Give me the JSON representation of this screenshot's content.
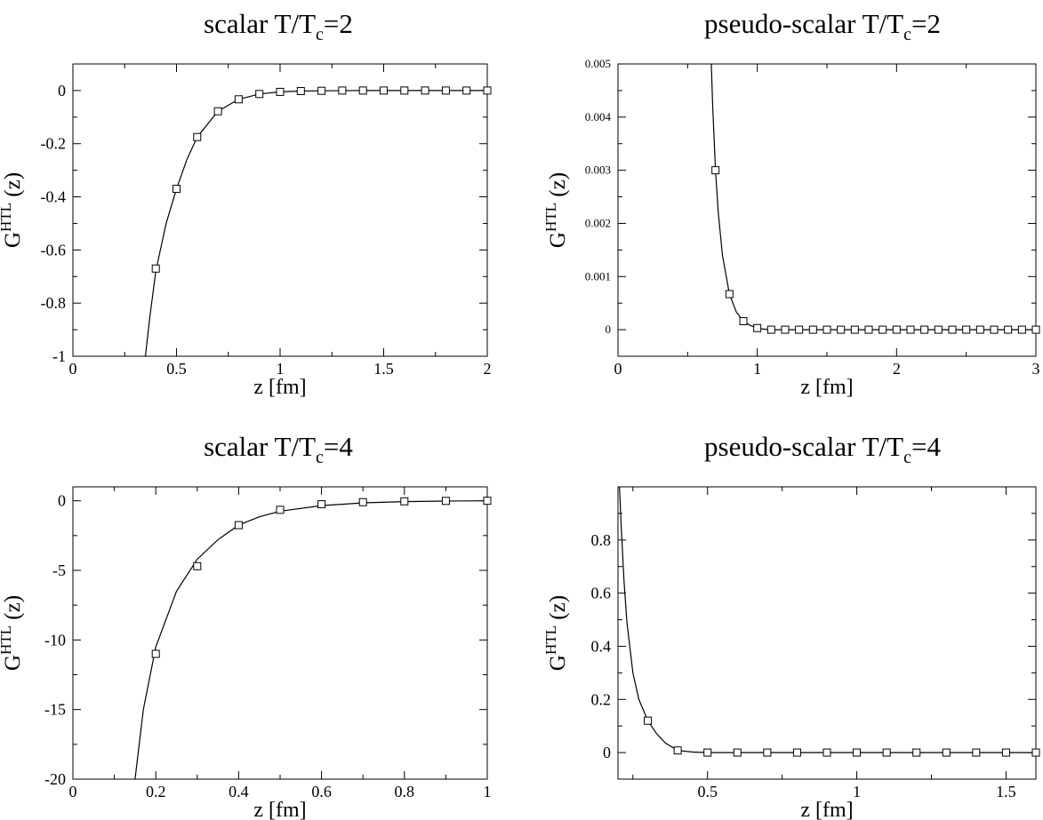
{
  "chart_data": [
    {
      "id": "scalar-T2",
      "type": "line",
      "title": "scalar T/T",
      "title_sub": "c",
      "title_tail": "=2",
      "xlabel": "z [fm]",
      "ylabel_main": "G",
      "ylabel_sup": "HTL",
      "ylabel_tail": " (z)",
      "xlim": [
        0,
        2
      ],
      "ylim": [
        -1,
        0.1
      ],
      "x_ticks": [
        "0",
        "0.5",
        "1",
        "1.5",
        "2"
      ],
      "x_tick_values": [
        0,
        0.5,
        1,
        1.5,
        2
      ],
      "y_ticks": [
        "-1",
        "-0.8",
        "-0.6",
        "-0.4",
        "-0.2",
        "0"
      ],
      "y_tick_values": [
        -1,
        -0.8,
        -0.6,
        -0.4,
        -0.2,
        0
      ],
      "series": [
        {
          "kind": "curve",
          "x": [
            0.35,
            0.37,
            0.4,
            0.45,
            0.5,
            0.55,
            0.6,
            0.7,
            0.8,
            0.9,
            1.0,
            1.1,
            1.2,
            1.4,
            1.6,
            1.8,
            2.0
          ],
          "y": [
            -1.0,
            -0.86,
            -0.68,
            -0.5,
            -0.37,
            -0.26,
            -0.175,
            -0.078,
            -0.033,
            -0.013,
            -0.005,
            -0.002,
            -0.001,
            0,
            0,
            0,
            0
          ]
        },
        {
          "kind": "markers",
          "x": [
            0.4,
            0.5,
            0.6,
            0.7,
            0.8,
            0.9,
            1.0,
            1.1,
            1.2,
            1.3,
            1.4,
            1.5,
            1.6,
            1.7,
            1.8,
            1.9,
            2.0
          ],
          "y": [
            -0.67,
            -0.37,
            -0.175,
            -0.078,
            -0.033,
            -0.013,
            -0.005,
            -0.002,
            -0.001,
            0,
            0,
            0,
            0,
            0,
            0,
            0,
            0
          ]
        }
      ]
    },
    {
      "id": "pseudo-scalar-T2",
      "type": "line",
      "title": "pseudo-scalar T/T",
      "title_sub": "c",
      "title_tail": "=2",
      "xlabel": "z [fm]",
      "ylabel_main": "G",
      "ylabel_sup": "HTL",
      "ylabel_tail": " (z)",
      "xlim": [
        0,
        3
      ],
      "ylim": [
        -0.0005,
        0.005
      ],
      "x_ticks": [
        "0",
        "1",
        "2",
        "3"
      ],
      "x_tick_values": [
        0,
        1,
        2,
        3
      ],
      "y_ticks": [
        "0",
        "0.001",
        "0.002",
        "0.003",
        "0.004",
        "0.005"
      ],
      "y_tick_values": [
        0,
        0.001,
        0.002,
        0.003,
        0.004,
        0.005
      ],
      "series": [
        {
          "kind": "curve",
          "x": [
            0.67,
            0.68,
            0.7,
            0.72,
            0.75,
            0.8,
            0.85,
            0.9,
            0.95,
            1.0,
            1.05,
            1.1,
            1.2,
            1.5,
            2.0,
            3.0
          ],
          "y": [
            0.005,
            0.0042,
            0.003,
            0.0022,
            0.0014,
            0.00067,
            0.00033,
            0.00016,
            8e-05,
            3e-05,
            1e-05,
            0,
            0,
            0,
            0,
            0
          ]
        },
        {
          "kind": "markers",
          "x": [
            0.7,
            0.8,
            0.9,
            1.0,
            1.1,
            1.2,
            1.3,
            1.4,
            1.5,
            1.6,
            1.7,
            1.8,
            1.9,
            2.0,
            2.1,
            2.2,
            2.3,
            2.4,
            2.5,
            2.6,
            2.7,
            2.8,
            2.9,
            3.0
          ],
          "y": [
            0.003,
            0.00067,
            0.00016,
            3e-05,
            0,
            0,
            0,
            0,
            0,
            0,
            0,
            0,
            0,
            0,
            0,
            0,
            0,
            0,
            0,
            0,
            0,
            0,
            0,
            0
          ]
        }
      ]
    },
    {
      "id": "scalar-T4",
      "type": "line",
      "title": "scalar T/T",
      "title_sub": "c",
      "title_tail": "=4",
      "xlabel": "z [fm]",
      "ylabel_main": "G",
      "ylabel_sup": "HTL",
      "ylabel_tail": " (z)",
      "xlim": [
        0,
        1
      ],
      "ylim": [
        -20,
        1
      ],
      "x_ticks": [
        "0",
        "0.2",
        "0.4",
        "0.6",
        "0.8",
        "1"
      ],
      "x_tick_values": [
        0,
        0.2,
        0.4,
        0.6,
        0.8,
        1
      ],
      "y_ticks": [
        "-20",
        "-15",
        "-10",
        "-5",
        "0"
      ],
      "y_tick_values": [
        -20,
        -15,
        -10,
        -5,
        0
      ],
      "series": [
        {
          "kind": "curve",
          "x": [
            0.15,
            0.17,
            0.2,
            0.25,
            0.3,
            0.35,
            0.4,
            0.45,
            0.5,
            0.6,
            0.7,
            0.8,
            0.9,
            1.0
          ],
          "y": [
            -20,
            -15,
            -10.5,
            -6.5,
            -4.2,
            -2.8,
            -1.75,
            -1.15,
            -0.75,
            -0.35,
            -0.15,
            -0.06,
            -0.02,
            0
          ]
        },
        {
          "kind": "markers",
          "x": [
            0.2,
            0.3,
            0.4,
            0.5,
            0.6,
            0.7,
            0.8,
            0.9,
            1.0
          ],
          "y": [
            -11,
            -4.7,
            -1.75,
            -0.65,
            -0.25,
            -0.1,
            -0.04,
            -0.01,
            0
          ]
        }
      ]
    },
    {
      "id": "pseudo-scalar-T4",
      "type": "line",
      "title": "pseudo-scalar T/T",
      "title_sub": "c",
      "title_tail": "=4",
      "xlabel": "z [fm]",
      "ylabel_main": "G",
      "ylabel_sup": "HTL",
      "ylabel_tail": " (z)",
      "xlim": [
        0.2,
        1.6
      ],
      "ylim": [
        -0.1,
        1.0
      ],
      "x_ticks": [
        "0.5",
        "1",
        "1.5"
      ],
      "x_tick_values": [
        0.5,
        1,
        1.5
      ],
      "y_ticks": [
        "0",
        "0.2",
        "0.4",
        "0.6",
        "0.8"
      ],
      "y_tick_values": [
        0,
        0.2,
        0.4,
        0.6,
        0.8
      ],
      "series": [
        {
          "kind": "curve",
          "x": [
            0.205,
            0.21,
            0.22,
            0.23,
            0.25,
            0.27,
            0.3,
            0.33,
            0.36,
            0.4,
            0.45,
            0.5,
            0.6,
            0.8,
            1.2,
            1.6
          ],
          "y": [
            1.0,
            0.87,
            0.65,
            0.49,
            0.3,
            0.2,
            0.12,
            0.07,
            0.035,
            0.008,
            0.002,
            0,
            0,
            0,
            0,
            0
          ]
        },
        {
          "kind": "markers",
          "x": [
            0.3,
            0.4,
            0.5,
            0.6,
            0.7,
            0.8,
            0.9,
            1.0,
            1.1,
            1.2,
            1.3,
            1.4,
            1.5,
            1.6
          ],
          "y": [
            0.12,
            0.008,
            0,
            0,
            0,
            0,
            0,
            0,
            0,
            0,
            0,
            0,
            0,
            0
          ]
        }
      ]
    }
  ]
}
